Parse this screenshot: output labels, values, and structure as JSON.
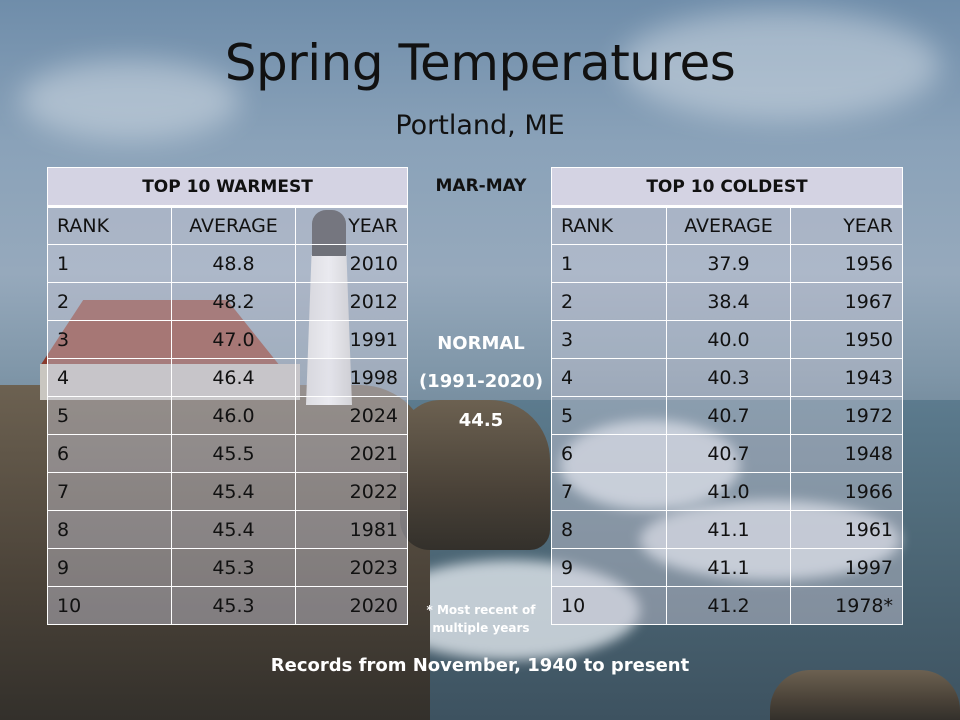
{
  "slide": {
    "title": "Spring Temperatures",
    "subtitle": "Portland, ME"
  },
  "warmest": {
    "heading": "TOP 10 WARMEST",
    "columns": [
      "RANK",
      "AVERAGE",
      "YEAR"
    ],
    "rows": [
      [
        "1",
        "48.8",
        "2010"
      ],
      [
        "2",
        "48.2",
        "2012"
      ],
      [
        "3",
        "47.0",
        "1991"
      ],
      [
        "4",
        "46.4",
        "1998"
      ],
      [
        "5",
        "46.0",
        "2024"
      ],
      [
        "6",
        "45.5",
        "2021"
      ],
      [
        "7",
        "45.4",
        "2022"
      ],
      [
        "8",
        "45.4",
        "1981"
      ],
      [
        "9",
        "45.3",
        "2023"
      ],
      [
        "10",
        "45.3",
        "2020"
      ]
    ]
  },
  "coldest": {
    "heading": "TOP 10 COLDEST",
    "columns": [
      "RANK",
      "AVERAGE",
      "YEAR"
    ],
    "rows": [
      [
        "1",
        "37.9",
        "1956"
      ],
      [
        "2",
        "38.4",
        "1967"
      ],
      [
        "3",
        "40.0",
        "1950"
      ],
      [
        "4",
        "40.3",
        "1943"
      ],
      [
        "5",
        "40.7",
        "1972"
      ],
      [
        "6",
        "40.7",
        "1948"
      ],
      [
        "7",
        "41.0",
        "1966"
      ],
      [
        "8",
        "41.1",
        "1961"
      ],
      [
        "9",
        "41.1",
        "1997"
      ],
      [
        "10",
        "41.2",
        "1978*"
      ]
    ]
  },
  "middle": {
    "season": "MAR-MAY",
    "normal_label": "NORMAL",
    "normal_period": "(1991-2020)",
    "normal_value": "44.5",
    "note_line1": "* Most recent of",
    "note_line2": "multiple years"
  },
  "footer": "Records from November, 1940 to present"
}
